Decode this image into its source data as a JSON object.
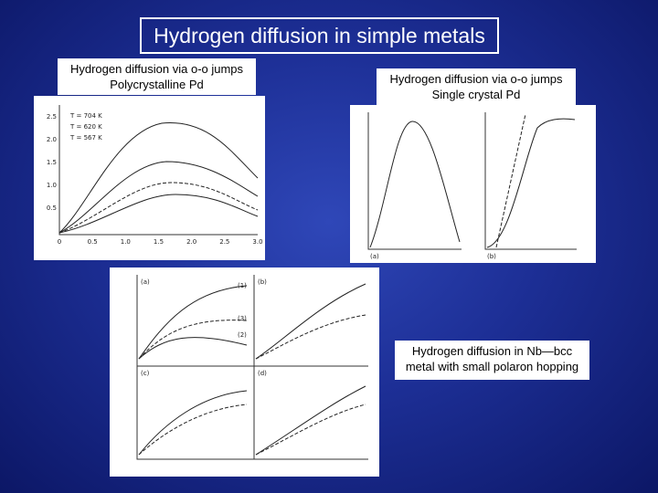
{
  "title": "Hydrogen diffusion in simple metals",
  "panels": [
    {
      "label": [
        "Hydrogen diffusion via o-o jumps",
        "Polycrystalline Pd"
      ],
      "figure": {
        "legend": [
          "T = 704  K",
          "T = 620  K",
          "T = 567  K"
        ],
        "xticks": [
          "0",
          "0.5",
          "1.0",
          "1.5",
          "2.0",
          "2.5",
          "3.0"
        ],
        "yticks": [
          "2.5",
          "2.0",
          "1.5",
          "1.0",
          "0.5"
        ]
      }
    },
    {
      "label": [
        "Hydrogen diffusion via o-o jumps",
        "Single crystal Pd"
      ],
      "figure": {
        "panel_tags": [
          "(a)",
          "(b)"
        ]
      }
    },
    {
      "label": [
        "Hydrogen diffusion in Nb—bcc",
        "metal with small polaron hopping"
      ],
      "figure": {
        "panel_tags": [
          "(a)",
          "(b)",
          "(c)",
          "(d)"
        ],
        "curve_labels": [
          "(1)",
          "(2)",
          "(3)"
        ]
      }
    }
  ]
}
